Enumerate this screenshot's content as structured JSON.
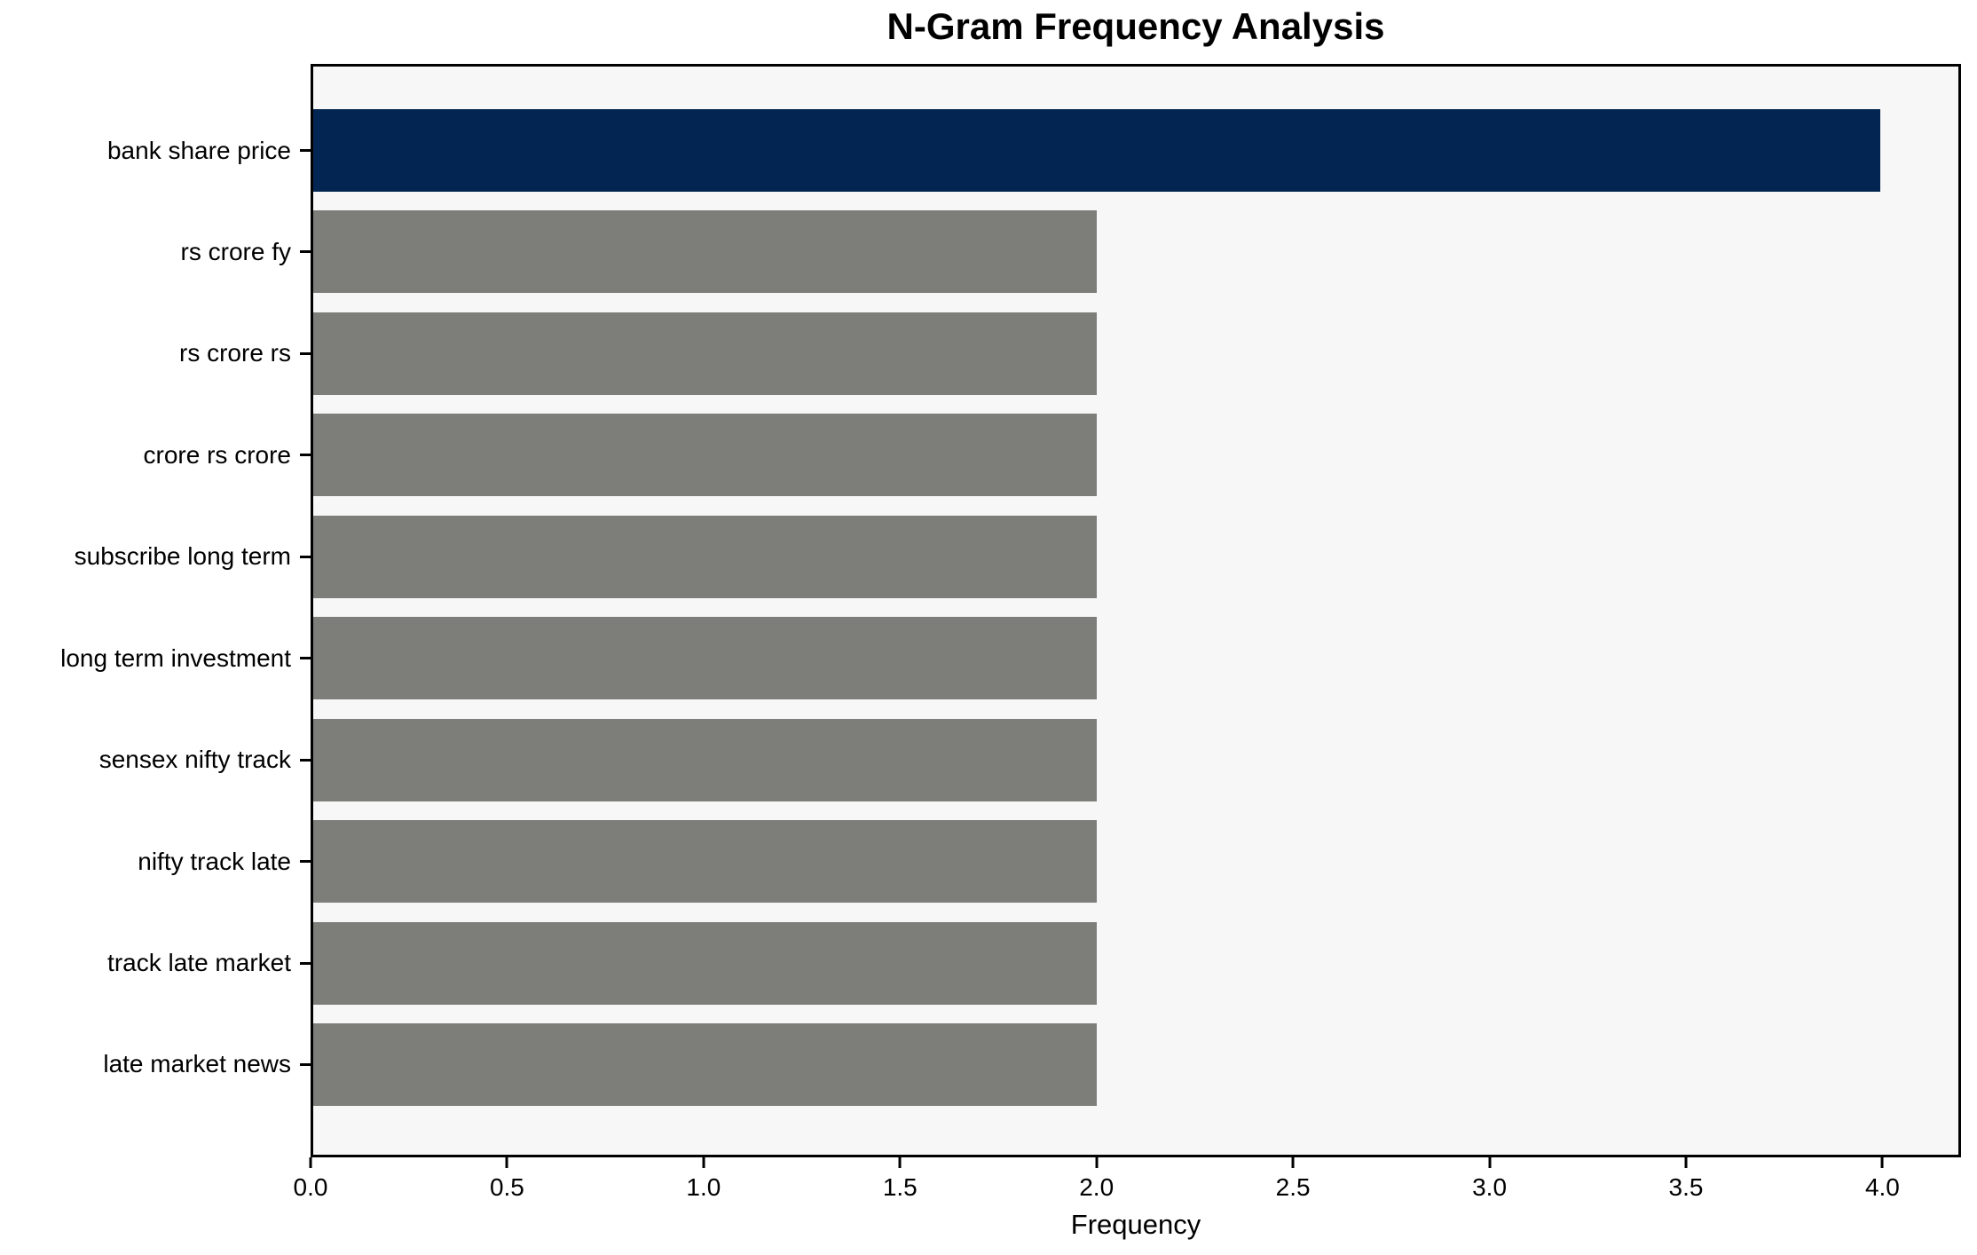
{
  "chart_data": {
    "type": "bar",
    "orientation": "horizontal",
    "title": "N-Gram Frequency Analysis",
    "xlabel": "Frequency",
    "ylabel": "",
    "categories": [
      "bank share price",
      "rs crore fy",
      "rs crore rs",
      "crore rs crore",
      "subscribe long term",
      "long term investment",
      "sensex nifty track",
      "nifty track late",
      "track late market",
      "late market news"
    ],
    "values": [
      4,
      2,
      2,
      2,
      2,
      2,
      2,
      2,
      2,
      2
    ],
    "bar_colors": [
      "#022551",
      "#7d7d7a",
      "#7d7d7a",
      "#7d7d7a",
      "#7d7d7a",
      "#7d7d7a",
      "#7d7d7a",
      "#7d7d7a",
      "#7d7d7a",
      "#7d7d7a"
    ],
    "xlim": [
      0,
      4.2
    ],
    "xticks": [
      0.0,
      0.5,
      1.0,
      1.5,
      2.0,
      2.5,
      3.0,
      3.5,
      4.0
    ],
    "xtick_labels": [
      "0.0",
      "0.5",
      "1.0",
      "1.5",
      "2.0",
      "2.5",
      "3.0",
      "3.5",
      "4.0"
    ],
    "grid": false,
    "legend_position": "none",
    "colors": {
      "highlight_bar": "#022551",
      "default_bar": "#7d7d7a",
      "plot_background": "#f7f7f7",
      "figure_background": "#ffffff",
      "spine": "#000000",
      "text": "#000000"
    }
  }
}
